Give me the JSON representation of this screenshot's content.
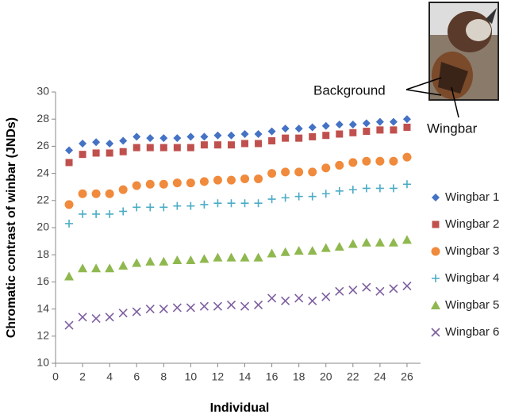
{
  "chart_data": {
    "type": "scatter",
    "x_label": "Individual",
    "y_label": "Chromatic contrast of winbar (JNDs)",
    "annotations": [
      "Background",
      "Wingbar"
    ],
    "x": [
      1,
      2,
      3,
      4,
      5,
      6,
      7,
      8,
      9,
      10,
      11,
      12,
      13,
      14,
      15,
      16,
      17,
      18,
      19,
      20,
      21,
      22,
      23,
      24,
      25,
      26
    ],
    "series": [
      {
        "name": "Wingbar 1",
        "color": "#4472c4",
        "marker": "diamond",
        "values": [
          25.7,
          26.2,
          26.3,
          26.2,
          26.4,
          26.7,
          26.6,
          26.6,
          26.6,
          26.7,
          26.7,
          26.8,
          26.8,
          26.9,
          26.9,
          27.1,
          27.3,
          27.3,
          27.4,
          27.5,
          27.6,
          27.6,
          27.7,
          27.8,
          27.8,
          28.0
        ]
      },
      {
        "name": "Wingbar 2",
        "color": "#c0504d",
        "marker": "square",
        "values": [
          24.8,
          25.4,
          25.5,
          25.5,
          25.6,
          25.9,
          25.9,
          25.9,
          25.9,
          25.9,
          26.1,
          26.1,
          26.1,
          26.2,
          26.2,
          26.4,
          26.6,
          26.6,
          26.7,
          26.8,
          26.9,
          27.0,
          27.1,
          27.2,
          27.2,
          27.4
        ]
      },
      {
        "name": "Wingbar 3",
        "color": "#f08a3c",
        "marker": "circle",
        "values": [
          21.7,
          22.5,
          22.5,
          22.5,
          22.8,
          23.1,
          23.2,
          23.2,
          23.3,
          23.3,
          23.4,
          23.5,
          23.5,
          23.6,
          23.6,
          24.0,
          24.1,
          24.1,
          24.1,
          24.4,
          24.6,
          24.8,
          24.9,
          24.9,
          24.9,
          25.2
        ]
      },
      {
        "name": "Wingbar 4",
        "color": "#4bacc6",
        "marker": "plus",
        "values": [
          20.3,
          21.0,
          21.0,
          21.0,
          21.2,
          21.5,
          21.5,
          21.5,
          21.6,
          21.6,
          21.7,
          21.8,
          21.8,
          21.8,
          21.8,
          22.1,
          22.2,
          22.3,
          22.3,
          22.5,
          22.7,
          22.8,
          22.9,
          22.9,
          22.9,
          23.2
        ]
      },
      {
        "name": "Wingbar 5",
        "color": "#8fb84f",
        "marker": "triangle",
        "values": [
          16.4,
          17.0,
          17.0,
          17.0,
          17.2,
          17.4,
          17.5,
          17.5,
          17.6,
          17.6,
          17.7,
          17.8,
          17.8,
          17.8,
          17.8,
          18.1,
          18.2,
          18.3,
          18.3,
          18.5,
          18.6,
          18.8,
          18.9,
          18.9,
          18.9,
          19.1
        ]
      },
      {
        "name": "Wingbar 6",
        "color": "#7d5fa0",
        "marker": "cross",
        "values": [
          12.8,
          13.4,
          13.3,
          13.4,
          13.7,
          13.8,
          14.0,
          14.0,
          14.1,
          14.1,
          14.2,
          14.2,
          14.3,
          14.2,
          14.3,
          14.8,
          14.6,
          14.8,
          14.6,
          14.9,
          15.3,
          15.4,
          15.6,
          15.3,
          15.5,
          15.7
        ]
      }
    ],
    "xlim": [
      0,
      27
    ],
    "xticks": [
      0,
      2,
      4,
      6,
      8,
      10,
      12,
      14,
      16,
      18,
      20,
      22,
      24,
      26
    ],
    "ylim": [
      10,
      30
    ],
    "yticks": [
      10,
      12,
      14,
      16,
      18,
      20,
      22,
      24,
      26,
      28,
      30
    ],
    "grid": false,
    "legend": "right"
  }
}
